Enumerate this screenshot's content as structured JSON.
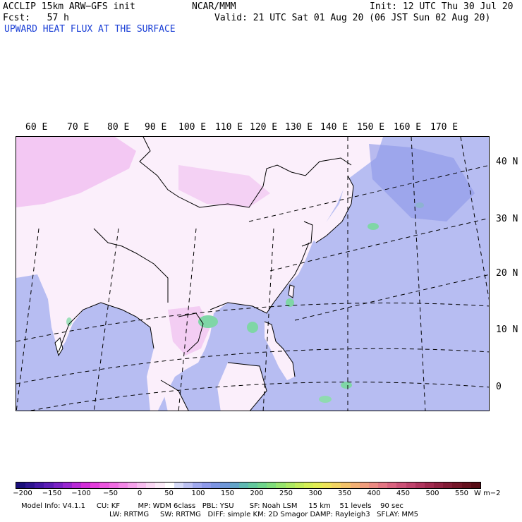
{
  "header": {
    "model": "ACCLIP 15km ARW−GFS init",
    "org": "NCAR/MMM",
    "init": "Init: 12 UTC Thu 30 Jul 20",
    "fcst": "Fcst:   57 h",
    "valid": "Valid: 21 UTC Sat 01 Aug 20 (06 JST Sun 02 Aug 20)",
    "field": "UPWARD HEAT FLUX AT THE SURFACE"
  },
  "map": {
    "lon_labels": [
      "60 E",
      "70 E",
      "80 E",
      "90 E",
      "100 E",
      "110 E",
      "120 E",
      "130 E",
      "140 E",
      "150 E",
      "160 E",
      "170 E"
    ],
    "lat_labels": [
      "40 N",
      "30 N",
      "20 N",
      "10 N",
      "0"
    ],
    "colors": {
      "ocean": "#b7bdf2",
      "land_low": "#ffffff",
      "land_neg": "#f4d8f4",
      "land_neg_strong": "#e89ae8",
      "flux_green": "#7fd6a6",
      "coast": "#000000",
      "grid": "#000000"
    }
  },
  "colorbar": {
    "ticks": [
      "−200",
      "−150",
      "−100",
      "−50",
      "0",
      "50",
      "100",
      "150",
      "200",
      "250",
      "300",
      "350",
      "400",
      "450",
      "500",
      "550"
    ],
    "unit": "W m−2",
    "colors": [
      "#1a0f7a",
      "#2e1590",
      "#4519a6",
      "#5d1eb6",
      "#7a22c4",
      "#9826cf",
      "#b82ad6",
      "#d22ed8",
      "#e33ddb",
      "#ec55de",
      "#f06de2",
      "#f387e6",
      "#f5a2ea",
      "#f7bdee",
      "#f9d6f2",
      "#fbeaf7",
      "#ffffff",
      "#d6daf7",
      "#bcc1f2",
      "#a0a9ee",
      "#8e9aea",
      "#7d95e3",
      "#6f97d8",
      "#63a4c8",
      "#5fb8b2",
      "#63c89d",
      "#6fd48c",
      "#80dc7c",
      "#97e46e",
      "#ade963",
      "#c3ec5a",
      "#d5ee55",
      "#e3ec54",
      "#eee35a",
      "#f2d462",
      "#f3c36a",
      "#f2b074",
      "#ef9d7c",
      "#eb8a82",
      "#e37683",
      "#d9637f",
      "#cc5277",
      "#bf436c",
      "#b0355e",
      "#a12a4f",
      "#912242",
      "#821b35",
      "#741628",
      "#65111e",
      "#570c15"
    ]
  },
  "footer": {
    "line1": "Model Info: V4.1.1     CU: KF        MP: WDM 6class   PBL: YSU       SF: Noah LSM     15 km    51 levels    90 sec",
    "line2": "LW: RRTMG     SW: RRTMG   DIFF: simple KM: 2D Smagor DAMP: Rayleigh3   SFLAY: MM5"
  }
}
